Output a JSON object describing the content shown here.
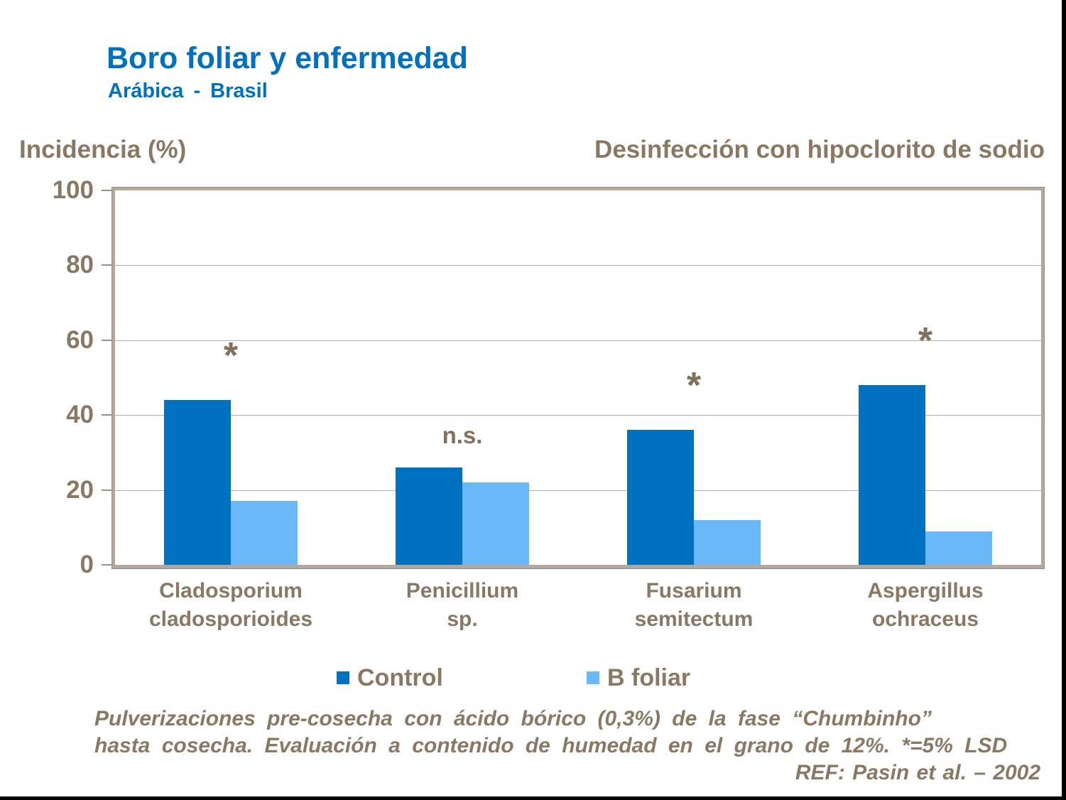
{
  "page": {
    "title": "Boro foliar y enfermedad",
    "subtitle": "Arábica - Brasil",
    "header_right": "Desinfección con hipoclorito de sodio"
  },
  "colors": {
    "heading_blue": "#0070C0",
    "text_brown": "#8A7862",
    "bar_control": "#0070C0",
    "bar_b_foliar": "#6BB8F8",
    "gridline_tan": "#b7aca0",
    "frame_tan": "#b4a89b",
    "edge_black": "#000000"
  },
  "chart_data": {
    "type": "bar",
    "title": "Boro foliar y enfermedad — Arábica - Brasil",
    "ylabel": "Incidencia (%)",
    "title_right": "Desinfección con hipoclorito de sodio",
    "ylim": [
      0,
      100
    ],
    "yticks": [
      0,
      20,
      40,
      60,
      80,
      100
    ],
    "grid": true,
    "legend_position": "bottom",
    "categories": [
      "Cladosporium cladosporioides",
      "Penicillium sp.",
      "Fusarium semitectum",
      "Aspergillus ochraceus"
    ],
    "category_label_lines": [
      [
        "Cladosporium",
        "cladosporioides"
      ],
      [
        "Penicillium",
        "sp."
      ],
      [
        "Fusarium",
        "semitectum"
      ],
      [
        "Aspergillus",
        "ochraceus"
      ]
    ],
    "series": [
      {
        "name": "Control",
        "color": "#0070C0",
        "values": [
          44,
          26,
          36,
          48
        ]
      },
      {
        "name": "B foliar",
        "color": "#6BB8F8",
        "values": [
          17,
          22,
          12,
          9
        ]
      }
    ],
    "annotations": [
      {
        "category_index": 0,
        "text": "*",
        "meaning": "significant at 5% LSD"
      },
      {
        "category_index": 1,
        "text": "n.s.",
        "meaning": "not significant"
      },
      {
        "category_index": 2,
        "text": "*",
        "meaning": "significant at 5% LSD"
      },
      {
        "category_index": 3,
        "text": "*",
        "meaning": "significant at 5% LSD"
      }
    ]
  },
  "legend": {
    "items": [
      {
        "label": "Control",
        "color": "#0070C0"
      },
      {
        "label": "B foliar",
        "color": "#6BB8F8"
      }
    ]
  },
  "footer": {
    "lines": [
      "Pulverizaciones pre-cosecha con ácido bórico (0,3%) de la fase “Chumbinho”",
      "hasta cosecha. Evaluación a contenido de humedad en el grano de 12%. *=5% LSD",
      "REF: Pasin et al. – 2002"
    ]
  }
}
